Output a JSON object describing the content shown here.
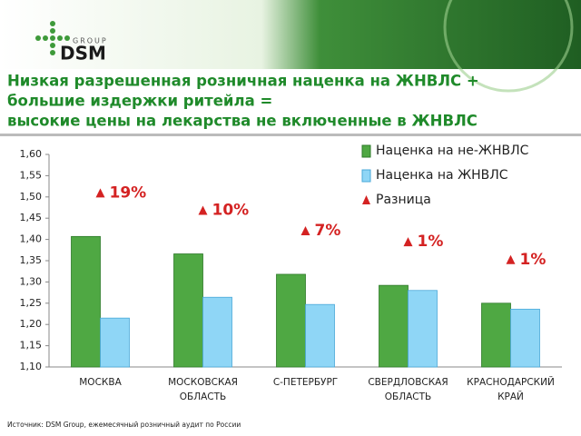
{
  "logo": {
    "name": "DSM",
    "group": "GROUP"
  },
  "chart_data": {
    "type": "bar",
    "title": [
      "Низкая разрешенная розничная наценка на ЖНВЛС +",
      "большие издержки ритейла =",
      "высокие цены на лекарства не включенные в ЖНВЛС"
    ],
    "categories": [
      "МОСКВА",
      "МОСКОВСКАЯ ОБЛАСТЬ",
      "С-ПЕТЕРБУРГ",
      "СВЕРДЛОВСКАЯ ОБЛАСТЬ",
      "КРАСНОДАРСКИЙ КРАЙ"
    ],
    "series": [
      {
        "name": "Наценка на не-ЖНВЛС",
        "color": "#4fa843",
        "values": [
          1.407,
          1.366,
          1.318,
          1.292,
          1.25
        ]
      },
      {
        "name": "Наценка на ЖНВЛС",
        "color": "#8fd6f6",
        "values": [
          1.215,
          1.264,
          1.247,
          1.28,
          1.236
        ]
      },
      {
        "name": "Разница",
        "color": "#d42222",
        "values": [
          19,
          10,
          7,
          1,
          1
        ],
        "value_labels": [
          "19%",
          "10%",
          "7%",
          "1%",
          "1%"
        ]
      }
    ],
    "ylim": [
      1.1,
      1.6
    ],
    "yticks": [
      {
        "value": 1.1,
        "label": "1,10"
      },
      {
        "value": 1.15,
        "label": "1,15"
      },
      {
        "value": 1.2,
        "label": "1,20"
      },
      {
        "value": 1.25,
        "label": "1,25"
      },
      {
        "value": 1.3,
        "label": "1,30"
      },
      {
        "value": 1.35,
        "label": "1,35"
      },
      {
        "value": 1.4,
        "label": "1,40"
      },
      {
        "value": 1.45,
        "label": "1,45"
      },
      {
        "value": 1.5,
        "label": "1,50"
      },
      {
        "value": 1.55,
        "label": "1,55"
      },
      {
        "value": 1.6,
        "label": "1,60"
      }
    ],
    "source": "Источник: DSM Group, ежемесячный розничный аудит по России"
  }
}
